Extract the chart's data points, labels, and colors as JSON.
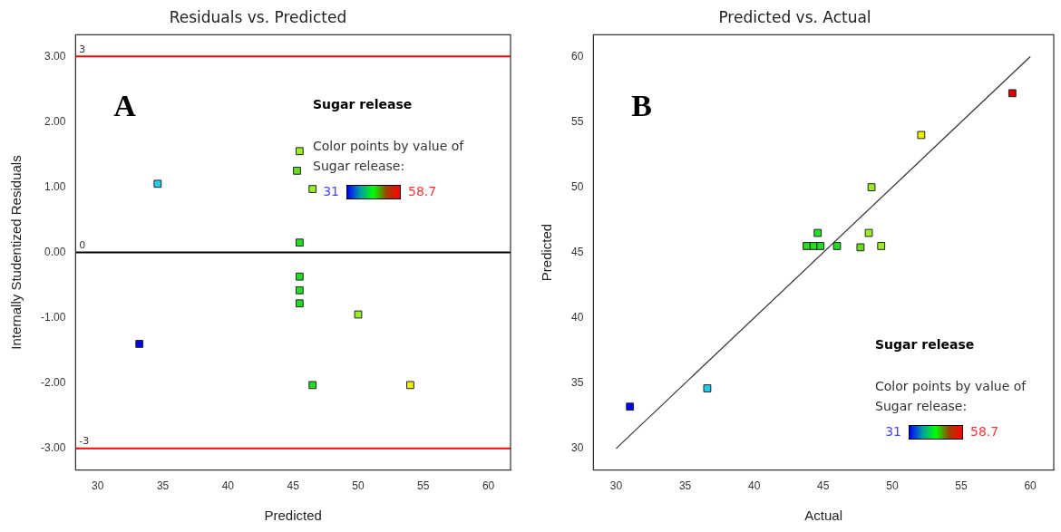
{
  "chart_data": [
    {
      "type": "scatter",
      "title": "Residuals vs. Predicted",
      "xlabel": "Predicted",
      "ylabel": "Internally Studentized Residuals",
      "marker": "square",
      "grid": false,
      "xlim": [
        28.3,
        61.7
      ],
      "xticks": [
        30,
        35,
        40,
        45,
        50,
        55,
        60
      ],
      "ylim": [
        -3.33,
        3.33
      ],
      "yticks": [
        {
          "value": -3,
          "label": "-3.00"
        },
        {
          "value": -2,
          "label": "-2.00"
        },
        {
          "value": -1,
          "label": "-1.00"
        },
        {
          "value": 0,
          "label": "0.00"
        },
        {
          "value": 1,
          "label": "1.00"
        },
        {
          "value": 2,
          "label": "2.00"
        },
        {
          "value": 3,
          "label": "3.00"
        }
      ],
      "ref_lines": [
        {
          "axis": "y",
          "value": 3,
          "label": "3",
          "color": "#ff0000"
        },
        {
          "axis": "y",
          "value": 0,
          "label": "0",
          "color": "#000000"
        },
        {
          "axis": "y",
          "value": -3,
          "label": "-3",
          "color": "#ff0000"
        }
      ],
      "series": [
        {
          "x": [
            33.2,
            34.6,
            45.5,
            45.3,
            45.5,
            45.5,
            45.5,
            45.5,
            46.5,
            46.5,
            50.0,
            54.0
          ],
          "values": [
            -1.4,
            1.05,
            1.55,
            1.25,
            0.15,
            -0.37,
            -0.58,
            -0.78,
            0.97,
            -2.03,
            -0.95,
            -2.03
          ],
          "colors": [
            "#0000ff",
            "#22ccee",
            "#99ee22",
            "#66dd22",
            "#22dd22",
            "#22dd22",
            "#22dd22",
            "#22dd22",
            "#99ee22",
            "#22dd22",
            "#99ee22",
            "#eeee00"
          ]
        }
      ],
      "annotations": [
        "A",
        "Sugar release",
        "Color points by value of Sugar release:",
        "31",
        "58.7"
      ]
    },
    {
      "type": "scatter",
      "title": "Predicted vs. Actual",
      "xlabel": "Actual",
      "ylabel": "Predicted",
      "marker": "square",
      "grid": false,
      "xlim": [
        28.35,
        61.7
      ],
      "xticks": [
        30,
        35,
        40,
        45,
        50,
        55,
        60
      ],
      "ylim": [
        28.35,
        61.67
      ],
      "yticks": [
        30,
        35,
        40,
        45,
        50,
        55,
        60
      ],
      "series": [
        {
          "x": [
            31.0,
            36.6,
            43.8,
            44.3,
            44.8,
            44.6,
            46.0,
            47.7,
            48.3,
            49.2,
            48.5,
            52.1,
            58.7
          ],
          "values": [
            33.2,
            34.6,
            45.5,
            45.5,
            45.5,
            46.5,
            45.5,
            45.4,
            46.5,
            45.5,
            50.0,
            54.0,
            57.2
          ],
          "colors": [
            "#0000ff",
            "#22ccee",
            "#22dd22",
            "#22dd22",
            "#22dd22",
            "#22dd22",
            "#22dd22",
            "#66dd22",
            "#99ee22",
            "#99ee22",
            "#99ee22",
            "#eeee00",
            "#dd0000"
          ]
        },
        {
          "type": "line",
          "x": [
            30,
            60
          ],
          "values": [
            30,
            60
          ],
          "color": "#333333",
          "marker": "none"
        }
      ],
      "annotations": [
        "B",
        "Sugar release",
        "Color points by value of Sugar release:",
        "31",
        "58.7"
      ]
    }
  ]
}
